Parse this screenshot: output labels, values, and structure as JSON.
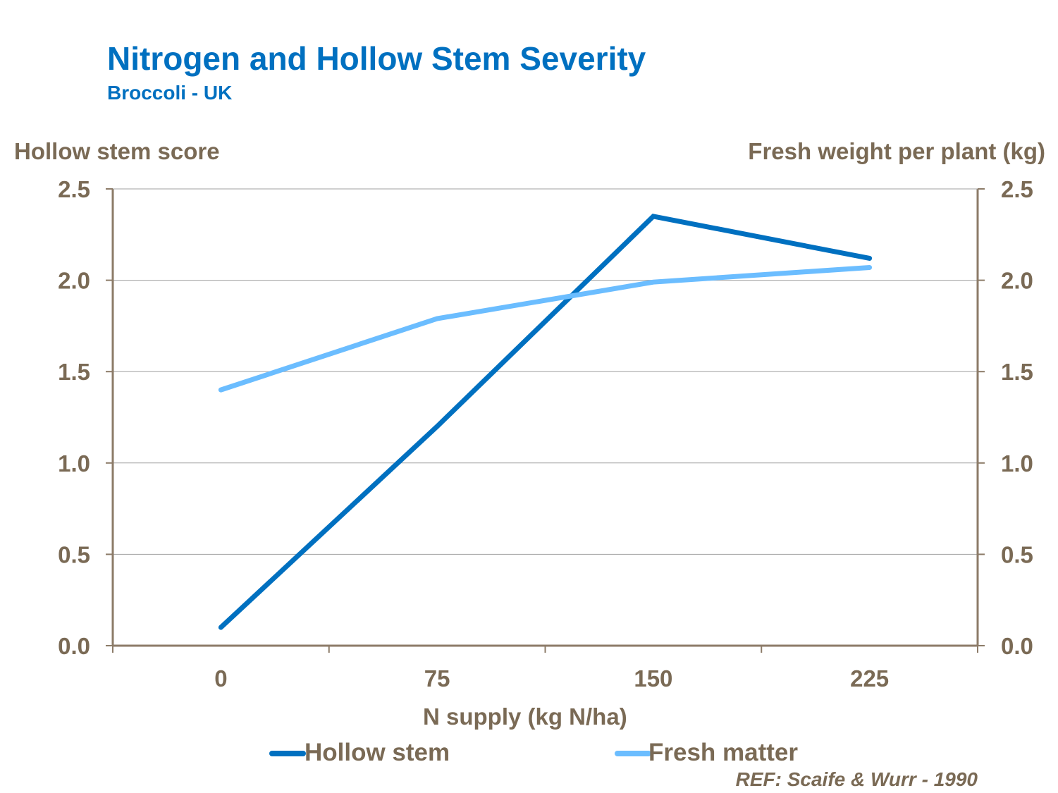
{
  "chart_data": {
    "type": "line",
    "title": "Nitrogen and Hollow Stem Severity",
    "subtitle": "Broccoli  - UK",
    "xlabel": "N supply (kg N/ha)",
    "ylabel": "Hollow stem score",
    "y2label": "Fresh weight per plant (kg)",
    "categories": [
      "0",
      "75",
      "150",
      "225"
    ],
    "ylim": [
      0,
      2.5
    ],
    "y2lim": [
      0,
      2.5
    ],
    "yticks": [
      "0.0",
      "0.5",
      "1.0",
      "1.5",
      "2.0",
      "2.5"
    ],
    "grid": true,
    "legend_position": "bottom",
    "series": [
      {
        "name": "Hollow stem",
        "axis": "left",
        "color": "#0070C0",
        "values": [
          0.1,
          1.2,
          2.35,
          2.12
        ]
      },
      {
        "name": "Fresh matter",
        "axis": "right",
        "color": "#6BBDFF",
        "values": [
          1.4,
          1.79,
          1.99,
          2.07
        ]
      }
    ],
    "annotation": "REF: Scaife & Wurr - 1990"
  }
}
